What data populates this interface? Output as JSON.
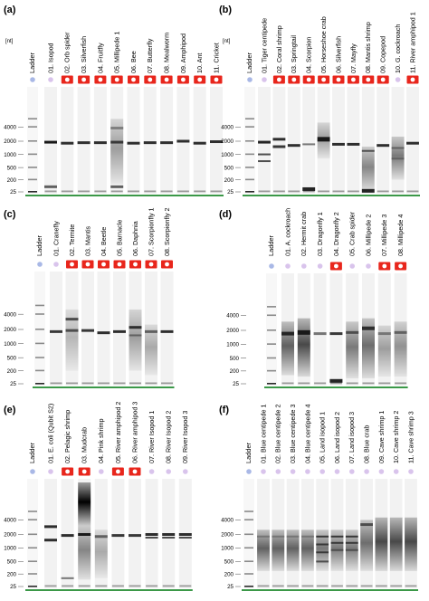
{
  "panels": [
    {
      "letter": "(a)",
      "unit": "[nt]",
      "ladder": "Ladder",
      "ticks": [
        "4000",
        "2000",
        "1000",
        "500",
        "200",
        "25"
      ],
      "lanes": [
        "01. Isopod",
        "02. Orb spider",
        "03. Silverfish",
        "04. Fruitfly",
        "05. Millipede 1",
        "06. Bee",
        "07. Butterfly",
        "08. Mealworm",
        "09. Amphipod",
        "10. Ant",
        "11. Cricket"
      ],
      "markers": [
        "dot",
        "red",
        "red",
        "red",
        "red",
        "red",
        "red",
        "red",
        "red",
        "red",
        "red"
      ],
      "bands": [
        {
          "lane": 0,
          "nt": 1900,
          "i": 0.95,
          "w": 3
        },
        {
          "lane": 0,
          "nt": 60,
          "i": 0.6,
          "w": 3
        },
        {
          "lane": 1,
          "nt": 1800,
          "i": 0.85,
          "w": 3
        },
        {
          "lane": 2,
          "nt": 1850,
          "i": 0.85,
          "w": 3
        },
        {
          "lane": 3,
          "nt": 1850,
          "i": 0.85,
          "w": 3
        },
        {
          "lane": 4,
          "nt": 3800,
          "i": 0.45,
          "w": 3
        },
        {
          "lane": 4,
          "nt": 1900,
          "i": 0.8,
          "w": 3
        },
        {
          "lane": 4,
          "nt": 60,
          "i": 0.6,
          "w": 3
        },
        {
          "lane": 5,
          "nt": 1800,
          "i": 0.85,
          "w": 3
        },
        {
          "lane": 6,
          "nt": 1850,
          "i": 0.85,
          "w": 3
        },
        {
          "lane": 7,
          "nt": 1850,
          "i": 0.85,
          "w": 3
        },
        {
          "lane": 8,
          "nt": 2000,
          "i": 0.85,
          "w": 3
        },
        {
          "lane": 9,
          "nt": 1800,
          "i": 0.85,
          "w": 3
        },
        {
          "lane": 10,
          "nt": 1950,
          "i": 0.85,
          "w": 3
        }
      ],
      "smears": [
        {
          "lane": 4,
          "from": 6000,
          "to": 100,
          "i": 0.35
        }
      ]
    },
    {
      "letter": "(b)",
      "unit": "[nt]",
      "ladder": "Ladder",
      "ticks": [
        "4000",
        "2000",
        "1000",
        "500",
        "200",
        "25"
      ],
      "lanes": [
        "01. Tiger centipede",
        "02. Coral shrimp",
        "03. Springtail",
        "04. Scorpion",
        "05. Horseshoe crab",
        "06. Silverfish",
        "07. Mayfly",
        "08. Mantis shrimp",
        "09. Copepod",
        "10. G. cockroach",
        "11. River amphipod 1"
      ],
      "markers": [
        "dot",
        "red",
        "red",
        "red",
        "red",
        "red",
        "red",
        "red",
        "red",
        "dot",
        "red"
      ],
      "bands": [
        {
          "lane": 0,
          "nt": 1900,
          "i": 0.9,
          "w": 3
        },
        {
          "lane": 0,
          "nt": 1000,
          "i": 0.7,
          "w": 2
        },
        {
          "lane": 0,
          "nt": 700,
          "i": 0.7,
          "w": 2
        },
        {
          "lane": 1,
          "nt": 2200,
          "i": 0.85,
          "w": 3
        },
        {
          "lane": 1,
          "nt": 1500,
          "i": 0.8,
          "w": 3
        },
        {
          "lane": 2,
          "nt": 1600,
          "i": 0.85,
          "w": 3
        },
        {
          "lane": 3,
          "nt": 1700,
          "i": 0.5,
          "w": 2
        },
        {
          "lane": 3,
          "nt": 40,
          "i": 0.9,
          "w": 4
        },
        {
          "lane": 4,
          "nt": 2200,
          "i": 0.95,
          "w": 5
        },
        {
          "lane": 5,
          "nt": 1700,
          "i": 0.85,
          "w": 3
        },
        {
          "lane": 6,
          "nt": 1700,
          "i": 0.85,
          "w": 3
        },
        {
          "lane": 7,
          "nt": 1200,
          "i": 0.7,
          "w": 2
        },
        {
          "lane": 7,
          "nt": 30,
          "i": 0.9,
          "w": 4
        },
        {
          "lane": 8,
          "nt": 1600,
          "i": 0.85,
          "w": 3
        },
        {
          "lane": 9,
          "nt": 1400,
          "i": 0.6,
          "w": 2
        },
        {
          "lane": 9,
          "nt": 800,
          "i": 0.6,
          "w": 2
        },
        {
          "lane": 10,
          "nt": 1800,
          "i": 0.85,
          "w": 3
        }
      ],
      "smears": [
        {
          "lane": 4,
          "from": 5000,
          "to": 800,
          "i": 0.35
        },
        {
          "lane": 7,
          "from": 1500,
          "to": 25,
          "i": 0.45
        },
        {
          "lane": 9,
          "from": 2500,
          "to": 200,
          "i": 0.5
        }
      ]
    },
    {
      "letter": "(c)",
      "unit": "",
      "ladder": "Ladder",
      "ticks": [
        "4000",
        "2000",
        "1000",
        "500",
        "200",
        "25"
      ],
      "lanes": [
        "01. Cranefly",
        "02. Termite",
        "03. Mantis",
        "04. Beetle",
        "05. Barnacle",
        "06. Daphnia",
        "07. Scorpionfly 1",
        "08. Scorpionfly 2"
      ],
      "markers": [
        "dot",
        "red",
        "red",
        "red",
        "red",
        "red",
        "red",
        "red"
      ],
      "bands": [
        {
          "lane": 0,
          "nt": 1800,
          "i": 0.8,
          "w": 3
        },
        {
          "lane": 1,
          "nt": 3200,
          "i": 0.7,
          "w": 3
        },
        {
          "lane": 1,
          "nt": 1900,
          "i": 0.7,
          "w": 3
        },
        {
          "lane": 2,
          "nt": 1900,
          "i": 0.8,
          "w": 3
        },
        {
          "lane": 3,
          "nt": 1700,
          "i": 0.85,
          "w": 3
        },
        {
          "lane": 4,
          "nt": 1800,
          "i": 0.85,
          "w": 3
        },
        {
          "lane": 5,
          "nt": 2200,
          "i": 0.85,
          "w": 3
        },
        {
          "lane": 5,
          "nt": 1500,
          "i": 0.6,
          "w": 2
        },
        {
          "lane": 6,
          "nt": 1800,
          "i": 0.6,
          "w": 3
        },
        {
          "lane": 7,
          "nt": 1800,
          "i": 0.85,
          "w": 3
        }
      ],
      "smears": [
        {
          "lane": 1,
          "from": 5000,
          "to": 200,
          "i": 0.25
        },
        {
          "lane": 5,
          "from": 5000,
          "to": 200,
          "i": 0.35
        },
        {
          "lane": 6,
          "from": 2500,
          "to": 100,
          "i": 0.3
        }
      ]
    },
    {
      "letter": "(d)",
      "unit": "",
      "ladder": "Ladder",
      "ticks": [
        "4000",
        "2000",
        "1000",
        "500",
        "200",
        "25"
      ],
      "lanes": [
        "01. A. cockroach",
        "02. Hermit crab",
        "03. Dragonfly 1",
        "04. Dragonfly 2",
        "05. Crab spider",
        "06. Millipede 2",
        "07. Millipede 3",
        "08. Millipede 4"
      ],
      "markers": [
        "dot",
        "dot",
        "dot",
        "red",
        "dot",
        "dot",
        "red",
        "red"
      ],
      "bands": [
        {
          "lane": 0,
          "nt": 1700,
          "i": 0.9,
          "w": 4
        },
        {
          "lane": 1,
          "nt": 1800,
          "i": 0.95,
          "w": 5
        },
        {
          "lane": 2,
          "nt": 1700,
          "i": 0.5,
          "w": 3
        },
        {
          "lane": 3,
          "nt": 1700,
          "i": 0.8,
          "w": 3
        },
        {
          "lane": 3,
          "nt": 40,
          "i": 0.9,
          "w": 4
        },
        {
          "lane": 4,
          "nt": 1800,
          "i": 0.7,
          "w": 3
        },
        {
          "lane": 5,
          "nt": 2200,
          "i": 0.85,
          "w": 4
        },
        {
          "lane": 6,
          "nt": 1700,
          "i": 0.5,
          "w": 3
        },
        {
          "lane": 7,
          "nt": 1800,
          "i": 0.6,
          "w": 3
        }
      ],
      "smears": [
        {
          "lane": 0,
          "from": 3000,
          "to": 100,
          "i": 0.6
        },
        {
          "lane": 1,
          "from": 3500,
          "to": 80,
          "i": 0.7
        },
        {
          "lane": 4,
          "from": 3000,
          "to": 60,
          "i": 0.5
        },
        {
          "lane": 5,
          "from": 3500,
          "to": 60,
          "i": 0.55
        },
        {
          "lane": 6,
          "from": 2500,
          "to": 80,
          "i": 0.35
        },
        {
          "lane": 7,
          "from": 3000,
          "to": 80,
          "i": 0.4
        }
      ]
    },
    {
      "letter": "(e)",
      "unit": "",
      "ladder": "Ladder",
      "ticks": [
        "4000",
        "2000",
        "1000",
        "500",
        "200",
        "25"
      ],
      "lanes": [
        "01. E. coli (Qubit S2)",
        "02. Pelagic shrimp",
        "03. Mudcrab",
        "04. Pink shrimp",
        "05. River amphipod 2",
        "06. River amphipod 3",
        "07. River Isopod 1",
        "08. River Isopod 2",
        "09. River Isopod 3"
      ],
      "markers": [
        "dot",
        "red",
        "red",
        "dot",
        "red",
        "red",
        "dot",
        "dot",
        "dot"
      ],
      "bands": [
        {
          "lane": 0,
          "nt": 2900,
          "i": 0.85,
          "w": 3
        },
        {
          "lane": 0,
          "nt": 1500,
          "i": 0.85,
          "w": 3
        },
        {
          "lane": 1,
          "nt": 1900,
          "i": 0.85,
          "w": 3
        },
        {
          "lane": 1,
          "nt": 100,
          "i": 0.5,
          "w": 2
        },
        {
          "lane": 2,
          "nt": 2000,
          "i": 0.95,
          "w": 3
        },
        {
          "lane": 3,
          "nt": 1800,
          "i": 0.6,
          "w": 3
        },
        {
          "lane": 4,
          "nt": 1900,
          "i": 0.8,
          "w": 3
        },
        {
          "lane": 5,
          "nt": 1900,
          "i": 0.8,
          "w": 3
        },
        {
          "lane": 6,
          "nt": 2000,
          "i": 0.85,
          "w": 3
        },
        {
          "lane": 6,
          "nt": 1700,
          "i": 0.7,
          "w": 2
        },
        {
          "lane": 7,
          "nt": 2000,
          "i": 0.85,
          "w": 3
        },
        {
          "lane": 7,
          "nt": 1700,
          "i": 0.7,
          "w": 2
        },
        {
          "lane": 8,
          "nt": 2000,
          "i": 0.85,
          "w": 3
        },
        {
          "lane": 8,
          "nt": 1700,
          "i": 0.7,
          "w": 2
        }
      ],
      "smears": [
        {
          "lane": 2,
          "from": 25000,
          "to": 3000,
          "i": 1.0
        },
        {
          "lane": 2,
          "from": 3000,
          "to": 80,
          "i": 0.45
        },
        {
          "lane": 3,
          "from": 2500,
          "to": 100,
          "i": 0.3
        }
      ]
    },
    {
      "letter": "(f)",
      "unit": "",
      "ladder": "Ladder",
      "ticks": [
        "4000",
        "2000",
        "1000",
        "500",
        "200",
        "25"
      ],
      "lanes": [
        "01. Blue centipede 1",
        "02. Blue centipede 2",
        "03. Blue centipede 3",
        "04. Blue centipede 4",
        "05. Land isopod 1",
        "06. Land isopod 2",
        "07. Land isopod 3",
        "08. Blue crab",
        "09. Cave shrimp 1",
        "10. Cave shrimp 2",
        "11. Cave shrimp 3"
      ],
      "markers": [
        "dot",
        "dot",
        "dot",
        "dot",
        "dot",
        "dot",
        "dot",
        "dot",
        "dot",
        "dot",
        "dot"
      ],
      "bands": [
        {
          "lane": 0,
          "nt": 1800,
          "i": 0.5,
          "w": 2
        },
        {
          "lane": 1,
          "nt": 1800,
          "i": 0.5,
          "w": 2
        },
        {
          "lane": 2,
          "nt": 1800,
          "i": 0.5,
          "w": 2
        },
        {
          "lane": 3,
          "nt": 1800,
          "i": 0.5,
          "w": 2
        },
        {
          "lane": 4,
          "nt": 1800,
          "i": 0.8,
          "w": 2
        },
        {
          "lane": 4,
          "nt": 1200,
          "i": 0.8,
          "w": 2
        },
        {
          "lane": 4,
          "nt": 800,
          "i": 0.8,
          "w": 2
        },
        {
          "lane": 4,
          "nt": 500,
          "i": 0.7,
          "w": 2
        },
        {
          "lane": 5,
          "nt": 1800,
          "i": 0.8,
          "w": 2
        },
        {
          "lane": 5,
          "nt": 1300,
          "i": 0.8,
          "w": 2
        },
        {
          "lane": 5,
          "nt": 900,
          "i": 0.7,
          "w": 2
        },
        {
          "lane": 6,
          "nt": 1800,
          "i": 0.8,
          "w": 2
        },
        {
          "lane": 6,
          "nt": 1300,
          "i": 0.8,
          "w": 2
        },
        {
          "lane": 6,
          "nt": 900,
          "i": 0.7,
          "w": 2
        },
        {
          "lane": 7,
          "nt": 3200,
          "i": 0.7,
          "w": 3
        }
      ],
      "smears": [
        {
          "lane": 0,
          "from": 2500,
          "to": 250,
          "i": 0.6
        },
        {
          "lane": 1,
          "from": 2500,
          "to": 250,
          "i": 0.6
        },
        {
          "lane": 2,
          "from": 2500,
          "to": 250,
          "i": 0.6
        },
        {
          "lane": 3,
          "from": 2500,
          "to": 250,
          "i": 0.6
        },
        {
          "lane": 4,
          "from": 2500,
          "to": 250,
          "i": 0.5
        },
        {
          "lane": 5,
          "from": 2500,
          "to": 250,
          "i": 0.5
        },
        {
          "lane": 6,
          "from": 2500,
          "to": 250,
          "i": 0.5
        },
        {
          "lane": 7,
          "from": 4000,
          "to": 250,
          "i": 0.55
        },
        {
          "lane": 8,
          "from": 4500,
          "to": 250,
          "i": 0.7
        },
        {
          "lane": 9,
          "from": 4500,
          "to": 250,
          "i": 0.7
        },
        {
          "lane": 10,
          "from": 4500,
          "to": 250,
          "i": 0.7
        }
      ]
    }
  ],
  "colors": {
    "ladder_dot": "#a9b8e6",
    "sample_dot": "#d9c4ec",
    "red_marker": "#e8261c",
    "baseline": "#1f8a2e",
    "label_box": "#f4f4f4"
  }
}
